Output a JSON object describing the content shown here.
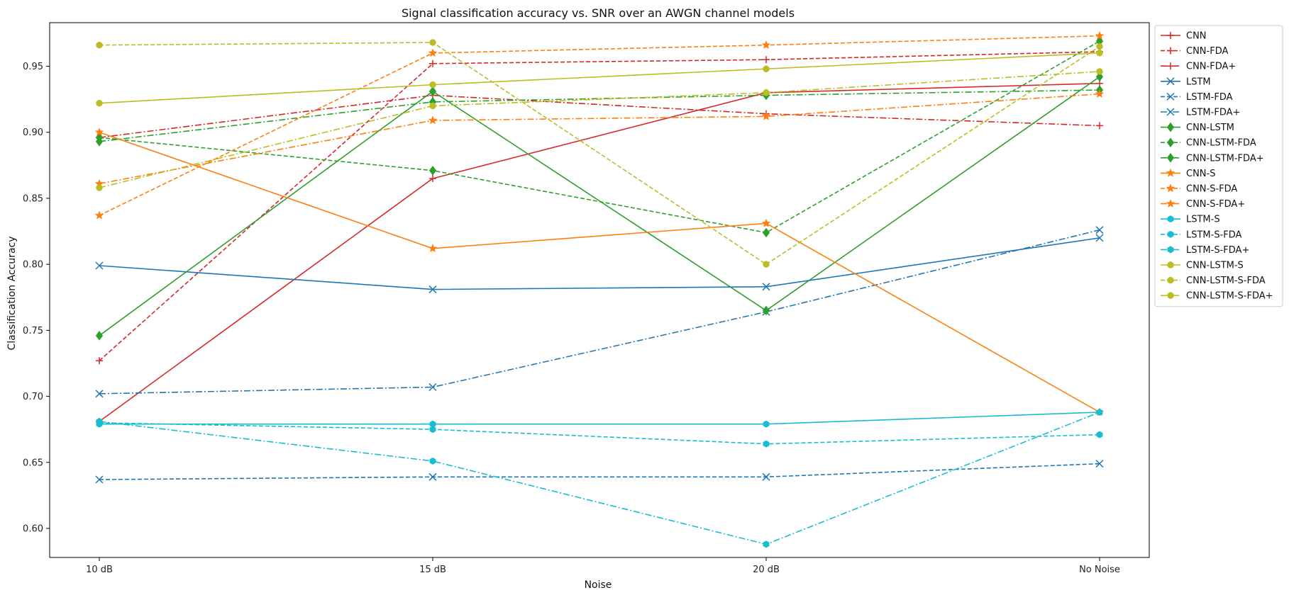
{
  "chart_data": {
    "type": "line",
    "title": "Signal classification accuracy vs. SNR over an AWGN channel models",
    "xlabel": "Noise",
    "ylabel": "Classification Accuracy",
    "categories": [
      "10 dB",
      "15 dB",
      "20 dB",
      "No Noise"
    ],
    "ylim": [
      0.578,
      0.983
    ],
    "yticks": [
      0.6,
      0.65,
      0.7,
      0.75,
      0.8,
      0.85,
      0.9,
      0.95
    ],
    "ytick_labels": [
      "0.60",
      "0.65",
      "0.70",
      "0.75",
      "0.80",
      "0.85",
      "0.90",
      "0.95"
    ],
    "grid": false,
    "legend_position": "outside-top-right",
    "series": [
      {
        "name": "CNN",
        "color": "#d62728",
        "dash": "solid",
        "marker": "plus",
        "values": [
          0.681,
          0.865,
          0.93,
          0.937
        ]
      },
      {
        "name": "CNN-FDA",
        "color": "#d62728",
        "dash": "dashed",
        "marker": "plus",
        "values": [
          0.727,
          0.952,
          0.955,
          0.961
        ]
      },
      {
        "name": "CNN-FDA+",
        "color": "#d62728",
        "dash": "dashdot",
        "marker": "plus",
        "values": [
          0.896,
          0.928,
          0.914,
          0.905
        ]
      },
      {
        "name": "LSTM",
        "color": "#1f77b4",
        "dash": "solid",
        "marker": "x",
        "values": [
          0.799,
          0.781,
          0.783,
          0.82
        ]
      },
      {
        "name": "LSTM-FDA",
        "color": "#1f77b4",
        "dash": "dashed",
        "marker": "x",
        "values": [
          0.637,
          0.639,
          0.639,
          0.649
        ]
      },
      {
        "name": "LSTM-FDA+",
        "color": "#1f77b4",
        "dash": "dashdot",
        "marker": "x",
        "values": [
          0.702,
          0.707,
          0.764,
          0.826
        ]
      },
      {
        "name": "CNN-LSTM",
        "color": "#2ca02c",
        "dash": "solid",
        "marker": "diamond",
        "values": [
          0.746,
          0.931,
          0.765,
          0.942
        ]
      },
      {
        "name": "CNN-LSTM-FDA",
        "color": "#2ca02c",
        "dash": "dashed",
        "marker": "diamond",
        "values": [
          0.896,
          0.871,
          0.824,
          0.969
        ]
      },
      {
        "name": "CNN-LSTM-FDA+",
        "color": "#2ca02c",
        "dash": "dashdot",
        "marker": "diamond",
        "values": [
          0.893,
          0.923,
          0.928,
          0.932
        ]
      },
      {
        "name": "CNN-S",
        "color": "#ff7f0e",
        "dash": "solid",
        "marker": "star",
        "values": [
          0.9,
          0.812,
          0.831,
          0.688
        ]
      },
      {
        "name": "CNN-S-FDA",
        "color": "#ff7f0e",
        "dash": "dashed",
        "marker": "star",
        "values": [
          0.837,
          0.96,
          0.966,
          0.973
        ]
      },
      {
        "name": "CNN-S-FDA+",
        "color": "#ff7f0e",
        "dash": "dashdot",
        "marker": "star",
        "values": [
          0.861,
          0.909,
          0.912,
          0.929
        ]
      },
      {
        "name": "LSTM-S",
        "color": "#17becf",
        "dash": "solid",
        "marker": "hexagon",
        "values": [
          0.679,
          0.679,
          0.679,
          0.688
        ]
      },
      {
        "name": "LSTM-S-FDA",
        "color": "#17becf",
        "dash": "dashed",
        "marker": "hexagon",
        "values": [
          0.68,
          0.675,
          0.664,
          0.671
        ]
      },
      {
        "name": "LSTM-S-FDA+",
        "color": "#17becf",
        "dash": "dashdot",
        "marker": "hexagon",
        "values": [
          0.681,
          0.651,
          0.588,
          0.688
        ]
      },
      {
        "name": "CNN-LSTM-S",
        "color": "#bcbd22",
        "dash": "solid",
        "marker": "circle",
        "values": [
          0.922,
          0.936,
          0.948,
          0.96
        ]
      },
      {
        "name": "CNN-LSTM-S-FDA",
        "color": "#bcbd22",
        "dash": "dashed",
        "marker": "circle",
        "values": [
          0.966,
          0.968,
          0.8,
          0.965
        ]
      },
      {
        "name": "CNN-LSTM-S-FDA+",
        "color": "#bcbd22",
        "dash": "dashdot",
        "marker": "circle",
        "values": [
          0.858,
          0.92,
          0.93,
          0.946
        ]
      }
    ]
  }
}
